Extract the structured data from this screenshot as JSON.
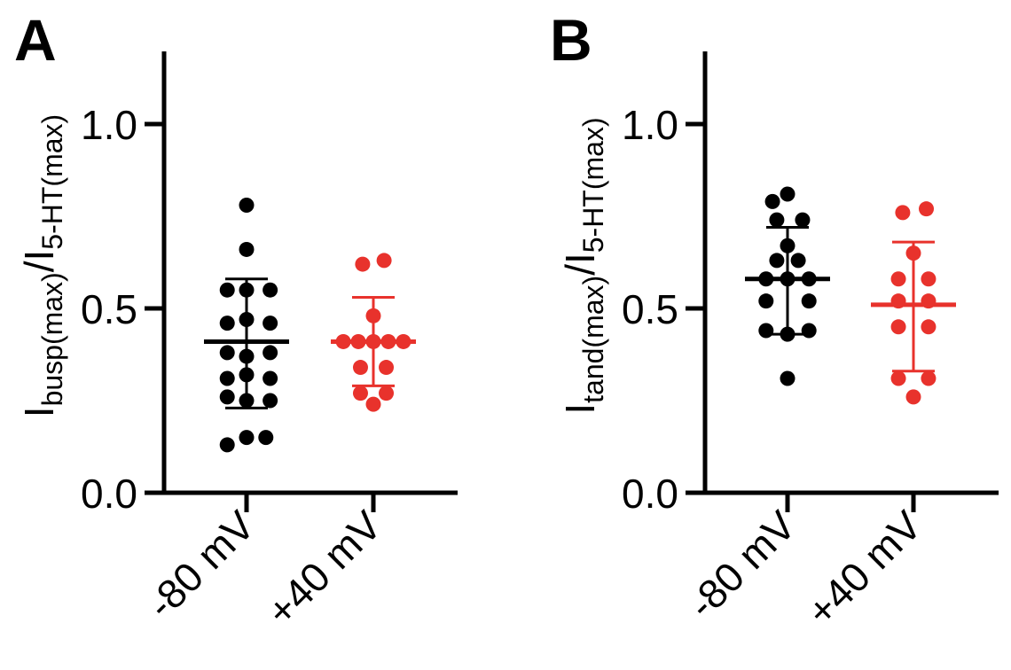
{
  "colors": {
    "group1": "#000000",
    "group2": "#e8322c",
    "axis": "#000000"
  },
  "chart_data": [
    {
      "type": "scatter",
      "panel_label": "A",
      "ylabel": {
        "main1": "I",
        "sub1": "busp(max)",
        "slash": "/",
        "main2": "I",
        "sub2": "5-HT(max)"
      },
      "ylim": [
        0,
        1.2
      ],
      "yticks": [
        0.0,
        0.5,
        1.0
      ],
      "ytick_labels": [
        "0.0",
        "0.5",
        "1.0"
      ],
      "categories": [
        "-80 mV",
        "+40 mV"
      ],
      "series": [
        {
          "points": [
            {
              "x": -0.18,
              "y": 0.13
            },
            {
              "x": 0.0,
              "y": 0.15
            },
            {
              "x": 0.18,
              "y": 0.15
            },
            {
              "x": -0.18,
              "y": 0.26
            },
            {
              "x": 0.0,
              "y": 0.25
            },
            {
              "x": 0.22,
              "y": 0.25
            },
            {
              "x": -0.18,
              "y": 0.31
            },
            {
              "x": 0.0,
              "y": 0.32
            },
            {
              "x": 0.22,
              "y": 0.31
            },
            {
              "x": -0.18,
              "y": 0.38
            },
            {
              "x": 0.0,
              "y": 0.37
            },
            {
              "x": 0.22,
              "y": 0.38
            },
            {
              "x": -0.18,
              "y": 0.46
            },
            {
              "x": 0.0,
              "y": 0.47
            },
            {
              "x": 0.22,
              "y": 0.46
            },
            {
              "x": -0.18,
              "y": 0.55
            },
            {
              "x": 0.0,
              "y": 0.55
            },
            {
              "x": 0.22,
              "y": 0.55
            },
            {
              "x": 0.0,
              "y": 0.66
            },
            {
              "x": 0.0,
              "y": 0.78
            }
          ],
          "mean": 0.41,
          "sd_upper": 0.58,
          "sd_lower": 0.23
        },
        {
          "points": [
            {
              "x": 0.0,
              "y": 0.24
            },
            {
              "x": -0.12,
              "y": 0.27
            },
            {
              "x": 0.12,
              "y": 0.27
            },
            {
              "x": -0.12,
              "y": 0.34
            },
            {
              "x": 0.12,
              "y": 0.34
            },
            {
              "x": -0.28,
              "y": 0.41
            },
            {
              "x": -0.14,
              "y": 0.41
            },
            {
              "x": 0.0,
              "y": 0.41
            },
            {
              "x": 0.14,
              "y": 0.41
            },
            {
              "x": 0.28,
              "y": 0.41
            },
            {
              "x": 0.0,
              "y": 0.48
            },
            {
              "x": -0.1,
              "y": 0.62
            },
            {
              "x": 0.1,
              "y": 0.63
            }
          ],
          "mean": 0.41,
          "sd_upper": 0.53,
          "sd_lower": 0.29
        }
      ]
    },
    {
      "type": "scatter",
      "panel_label": "B",
      "ylabel": {
        "main1": "I",
        "sub1": "tand(max)",
        "slash": "/",
        "main2": "I",
        "sub2": "5-HT(max)"
      },
      "ylim": [
        0,
        1.2
      ],
      "yticks": [
        0.0,
        0.5,
        1.0
      ],
      "ytick_labels": [
        "0.0",
        "0.5",
        "1.0"
      ],
      "categories": [
        "-80 mV",
        "+40 mV"
      ],
      "series": [
        {
          "points": [
            {
              "x": 0.0,
              "y": 0.31
            },
            {
              "x": -0.2,
              "y": 0.44
            },
            {
              "x": 0.0,
              "y": 0.43
            },
            {
              "x": 0.2,
              "y": 0.44
            },
            {
              "x": -0.2,
              "y": 0.52
            },
            {
              "x": 0.2,
              "y": 0.52
            },
            {
              "x": -0.2,
              "y": 0.58
            },
            {
              "x": 0.0,
              "y": 0.58
            },
            {
              "x": 0.2,
              "y": 0.58
            },
            {
              "x": -0.1,
              "y": 0.63
            },
            {
              "x": 0.1,
              "y": 0.63
            },
            {
              "x": 0.0,
              "y": 0.67
            },
            {
              "x": -0.1,
              "y": 0.74
            },
            {
              "x": 0.14,
              "y": 0.74
            },
            {
              "x": -0.14,
              "y": 0.79
            },
            {
              "x": 0.0,
              "y": 0.81
            }
          ],
          "mean": 0.58,
          "sd_upper": 0.72,
          "sd_lower": 0.43
        },
        {
          "points": [
            {
              "x": 0.0,
              "y": 0.26
            },
            {
              "x": -0.14,
              "y": 0.31
            },
            {
              "x": 0.14,
              "y": 0.31
            },
            {
              "x": -0.14,
              "y": 0.45
            },
            {
              "x": 0.14,
              "y": 0.45
            },
            {
              "x": -0.14,
              "y": 0.52
            },
            {
              "x": 0.14,
              "y": 0.52
            },
            {
              "x": -0.14,
              "y": 0.58
            },
            {
              "x": 0.14,
              "y": 0.58
            },
            {
              "x": 0.0,
              "y": 0.65
            },
            {
              "x": -0.1,
              "y": 0.76
            },
            {
              "x": 0.12,
              "y": 0.77
            }
          ],
          "mean": 0.51,
          "sd_upper": 0.68,
          "sd_lower": 0.33
        }
      ]
    }
  ]
}
